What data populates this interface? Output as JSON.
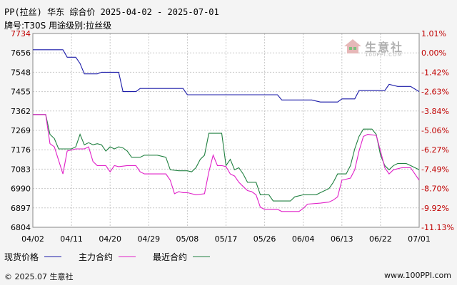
{
  "title": "PP(拉丝) 华东 综合价 2025-04-02 - 2025-07-01",
  "subtitle": "牌号:T30S 用途级别:拉丝级",
  "footer": {
    "left": "© 2025.07 生意社",
    "right": "www.100PPI.com"
  },
  "logo": {
    "name": "生意社",
    "url": "100PPI.COM"
  },
  "colors": {
    "spot": "#1a1aa8",
    "main": "#e020c8",
    "recent": "#208040",
    "grid": "#c8c8c8",
    "right_axis": "#c00000"
  },
  "chart_data": {
    "type": "line",
    "x_ticks": [
      "04/02",
      "04/11",
      "04/20",
      "04/29",
      "05/08",
      "05/17",
      "05/26",
      "06/04",
      "06/13",
      "06/22",
      "07/01"
    ],
    "x_range": [
      "04/02",
      "07/01"
    ],
    "y_ticks": [
      "7734",
      "7656",
      "7548",
      "7455",
      "7362",
      "7269",
      "7176",
      "7083",
      "6990",
      "6897",
      "6804"
    ],
    "y_right_ticks": [
      "1.01%",
      "0.00%",
      "-1.42%",
      "-2.63%",
      "-3.84%",
      "-5.06%",
      "-6.27%",
      "-7.49%",
      "-8.70%",
      "-9.92%",
      "-11.13%"
    ],
    "ylim": [
      6804,
      7734
    ],
    "grid": true,
    "legend_position": "bottom",
    "series": [
      {
        "name": "现货价格",
        "color": "#1a1aa8",
        "points": [
          [
            "04/02",
            7656
          ],
          [
            "04/09",
            7656
          ],
          [
            "04/10",
            7620
          ],
          [
            "04/12",
            7620
          ],
          [
            "04/13",
            7590
          ],
          [
            "04/14",
            7540
          ],
          [
            "04/17",
            7540
          ],
          [
            "04/18",
            7548
          ],
          [
            "04/22",
            7548
          ],
          [
            "04/23",
            7455
          ],
          [
            "04/26",
            7455
          ],
          [
            "04/27",
            7470
          ],
          [
            "05/07",
            7470
          ],
          [
            "05/08",
            7440
          ],
          [
            "05/29",
            7440
          ],
          [
            "05/30",
            7415
          ],
          [
            "06/06",
            7415
          ],
          [
            "06/07",
            7410
          ],
          [
            "06/08",
            7405
          ],
          [
            "06/12",
            7405
          ],
          [
            "06/13",
            7420
          ],
          [
            "06/16",
            7420
          ],
          [
            "06/17",
            7460
          ],
          [
            "06/23",
            7460
          ],
          [
            "06/24",
            7490
          ],
          [
            "06/26",
            7480
          ],
          [
            "06/29",
            7480
          ],
          [
            "07/01",
            7455
          ]
        ]
      },
      {
        "name": "主力合约",
        "color": "#e020c8",
        "points": [
          [
            "04/02",
            7345
          ],
          [
            "04/05",
            7345
          ],
          [
            "04/06",
            7205
          ],
          [
            "04/07",
            7190
          ],
          [
            "04/08",
            7125
          ],
          [
            "04/09",
            7060
          ],
          [
            "04/10",
            7170
          ],
          [
            "04/12",
            7180
          ],
          [
            "04/14",
            7180
          ],
          [
            "04/15",
            7190
          ],
          [
            "04/16",
            7120
          ],
          [
            "04/17",
            7100
          ],
          [
            "04/19",
            7100
          ],
          [
            "04/20",
            7070
          ],
          [
            "04/21",
            7100
          ],
          [
            "04/22",
            7095
          ],
          [
            "04/24",
            7100
          ],
          [
            "04/26",
            7100
          ],
          [
            "04/27",
            7070
          ],
          [
            "04/28",
            7060
          ],
          [
            "05/03",
            7060
          ],
          [
            "05/04",
            7030
          ],
          [
            "05/05",
            6965
          ],
          [
            "05/06",
            6975
          ],
          [
            "05/07",
            6970
          ],
          [
            "05/08",
            6970
          ],
          [
            "05/10",
            6960
          ],
          [
            "05/12",
            6965
          ],
          [
            "05/13",
            7070
          ],
          [
            "05/14",
            7150
          ],
          [
            "05/15",
            7100
          ],
          [
            "05/16",
            7100
          ],
          [
            "05/17",
            7095
          ],
          [
            "05/18",
            7060
          ],
          [
            "05/19",
            7050
          ],
          [
            "05/20",
            7020
          ],
          [
            "05/21",
            7000
          ],
          [
            "05/22",
            6980
          ],
          [
            "05/23",
            6975
          ],
          [
            "05/24",
            6960
          ],
          [
            "05/25",
            6900
          ],
          [
            "05/26",
            6890
          ],
          [
            "05/29",
            6890
          ],
          [
            "05/30",
            6880
          ],
          [
            "06/03",
            6880
          ],
          [
            "06/04",
            6895
          ],
          [
            "06/05",
            6915
          ],
          [
            "06/08",
            6920
          ],
          [
            "06/10",
            6925
          ],
          [
            "06/11",
            6935
          ],
          [
            "06/12",
            6950
          ],
          [
            "06/13",
            7030
          ],
          [
            "06/15",
            7040
          ],
          [
            "06/16",
            7080
          ],
          [
            "06/17",
            7170
          ],
          [
            "06/18",
            7240
          ],
          [
            "06/19",
            7250
          ],
          [
            "06/21",
            7245
          ],
          [
            "06/22",
            7170
          ],
          [
            "06/23",
            7090
          ],
          [
            "06/24",
            7060
          ],
          [
            "06/25",
            7080
          ],
          [
            "06/27",
            7090
          ],
          [
            "06/29",
            7090
          ],
          [
            "06/30",
            7060
          ],
          [
            "07/01",
            7030
          ]
        ]
      },
      {
        "name": "最近合约",
        "color": "#208040",
        "points": [
          [
            "04/02",
            7345
          ],
          [
            "04/05",
            7345
          ],
          [
            "04/06",
            7250
          ],
          [
            "04/07",
            7230
          ],
          [
            "04/08",
            7180
          ],
          [
            "04/11",
            7180
          ],
          [
            "04/12",
            7190
          ],
          [
            "04/13",
            7250
          ],
          [
            "04/14",
            7200
          ],
          [
            "04/15",
            7210
          ],
          [
            "04/16",
            7200
          ],
          [
            "04/17",
            7205
          ],
          [
            "04/18",
            7200
          ],
          [
            "04/19",
            7170
          ],
          [
            "04/20",
            7190
          ],
          [
            "04/21",
            7180
          ],
          [
            "04/22",
            7190
          ],
          [
            "04/23",
            7185
          ],
          [
            "04/24",
            7170
          ],
          [
            "04/25",
            7140
          ],
          [
            "04/27",
            7140
          ],
          [
            "04/28",
            7150
          ],
          [
            "05/01",
            7150
          ],
          [
            "05/03",
            7140
          ],
          [
            "05/04",
            7080
          ],
          [
            "05/06",
            7075
          ],
          [
            "05/08",
            7075
          ],
          [
            "05/09",
            7070
          ],
          [
            "05/10",
            7090
          ],
          [
            "05/11",
            7130
          ],
          [
            "05/12",
            7150
          ],
          [
            "05/13",
            7255
          ],
          [
            "05/15",
            7255
          ],
          [
            "05/16",
            7255
          ],
          [
            "05/17",
            7100
          ],
          [
            "05/18",
            7130
          ],
          [
            "05/19",
            7080
          ],
          [
            "05/20",
            7090
          ],
          [
            "05/21",
            7060
          ],
          [
            "05/22",
            7020
          ],
          [
            "05/24",
            7020
          ],
          [
            "05/25",
            6960
          ],
          [
            "05/27",
            6960
          ],
          [
            "05/28",
            6930
          ],
          [
            "06/01",
            6930
          ],
          [
            "06/02",
            6950
          ],
          [
            "06/04",
            6960
          ],
          [
            "06/07",
            6960
          ],
          [
            "06/08",
            6970
          ],
          [
            "06/10",
            6990
          ],
          [
            "06/11",
            7020
          ],
          [
            "06/12",
            7060
          ],
          [
            "06/14",
            7060
          ],
          [
            "06/15",
            7100
          ],
          [
            "06/16",
            7180
          ],
          [
            "06/17",
            7240
          ],
          [
            "06/18",
            7275
          ],
          [
            "06/20",
            7275
          ],
          [
            "06/21",
            7250
          ],
          [
            "06/22",
            7150
          ],
          [
            "06/23",
            7100
          ],
          [
            "06/24",
            7080
          ],
          [
            "06/25",
            7100
          ],
          [
            "06/26",
            7110
          ],
          [
            "06/28",
            7110
          ],
          [
            "06/29",
            7100
          ],
          [
            "07/01",
            7080
          ]
        ]
      }
    ]
  }
}
